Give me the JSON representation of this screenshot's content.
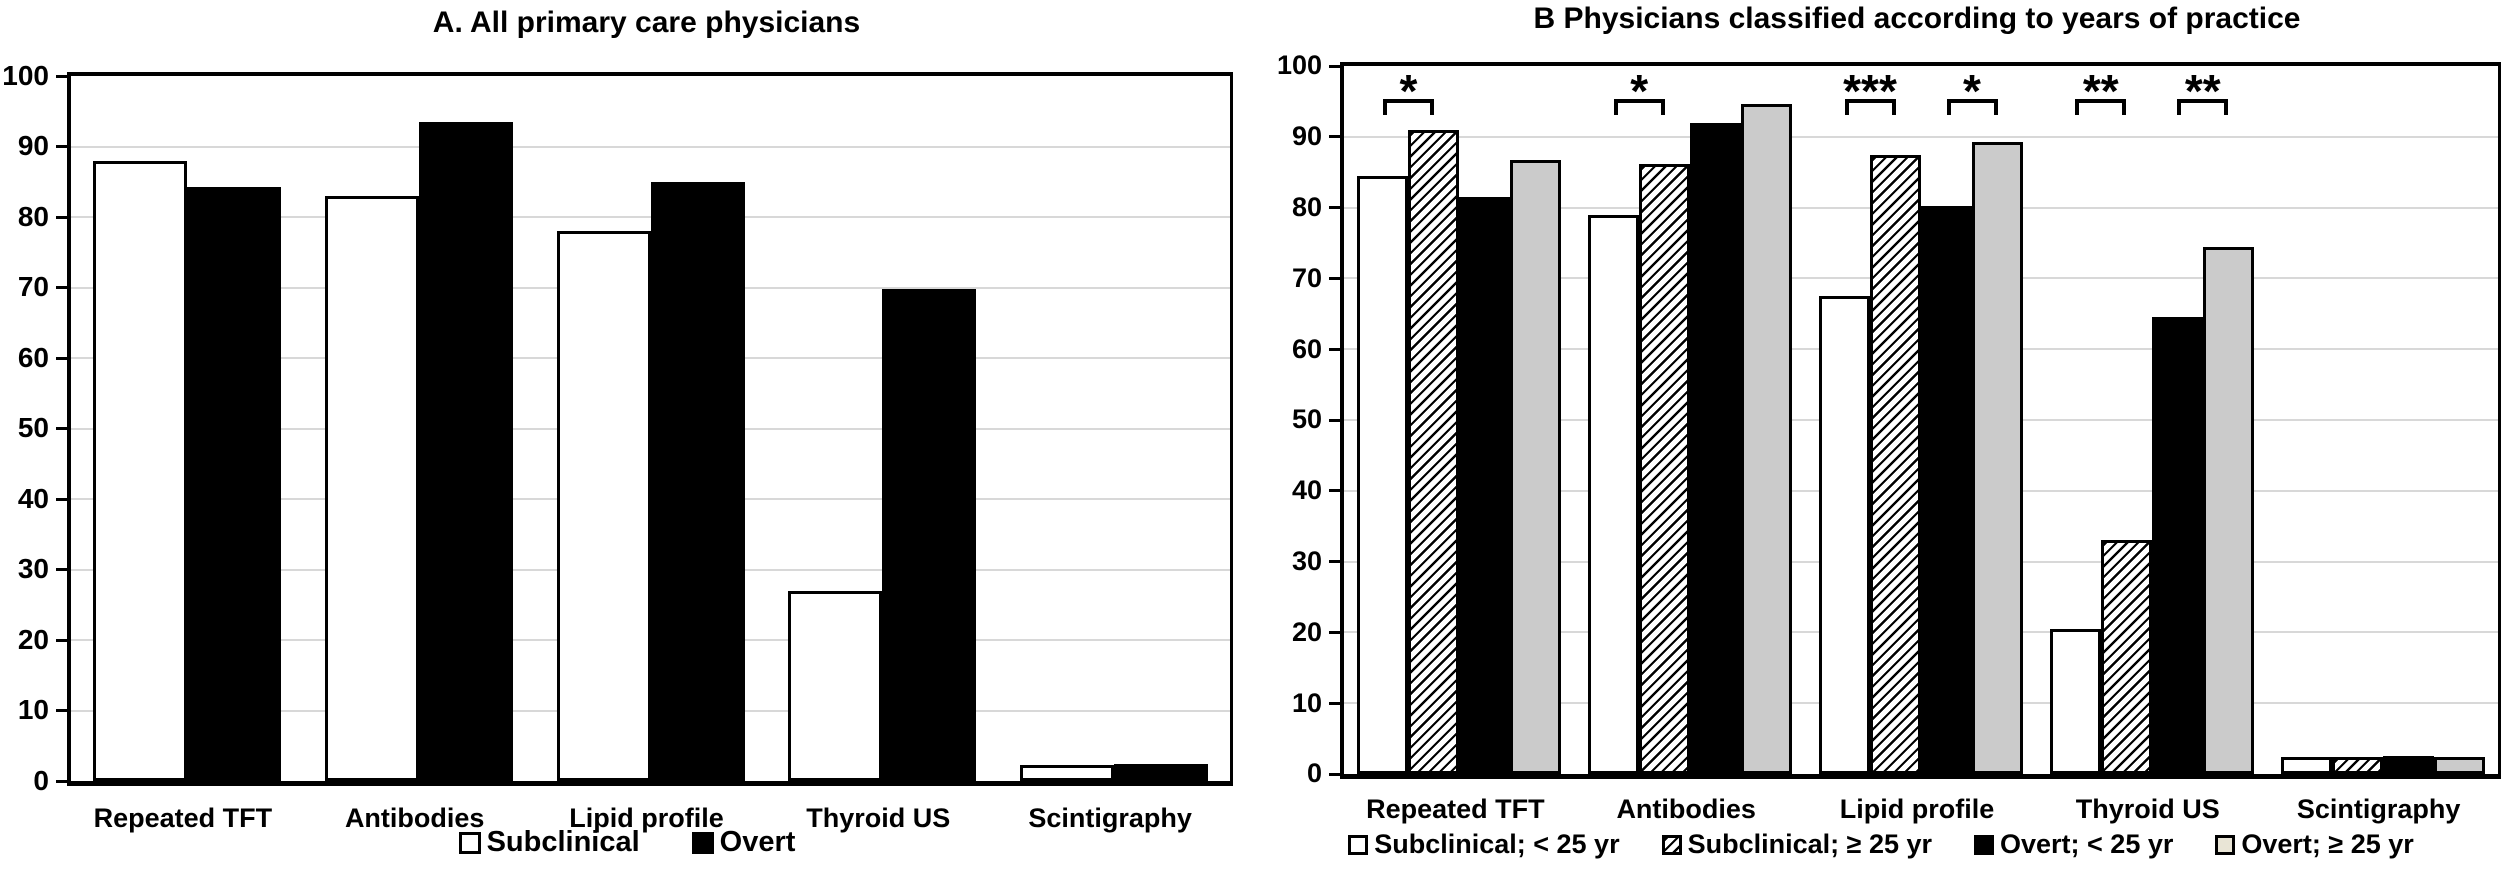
{
  "colors": {
    "black": "#000000",
    "white": "#ffffff",
    "gray_bar": "#cbcbcb",
    "legend_gray_swatch": "#e9e5d6",
    "gridline": "#d8d8d8"
  },
  "chart_data": [
    {
      "type": "bar",
      "panel": "A",
      "title": "A. All primary care physicians",
      "categories": [
        "Repeated TFT",
        "Antibodies",
        "Lipid profile",
        "Thyroid US",
        "Scintigraphy"
      ],
      "series": [
        {
          "name": "Subclinical",
          "style": "white",
          "values": [
            88,
            83,
            78,
            27,
            2.3
          ]
        },
        {
          "name": "Overt",
          "style": "black",
          "values": [
            84.3,
            93.5,
            85,
            69.8,
            2.4
          ]
        }
      ],
      "xlabel": "",
      "ylabel": "",
      "ylim": [
        0,
        100
      ],
      "ytick_step": 10,
      "ytick_labels": [
        "0",
        "10",
        "20",
        "30",
        "40",
        "50",
        "60",
        "70",
        "80",
        "90",
        "100"
      ],
      "grid": true,
      "legend_position": "bottom"
    },
    {
      "type": "bar",
      "panel": "B",
      "title": "B Physicians classified according to years of practice",
      "categories": [
        "Repeated TFT",
        "Antibodies",
        "Lipid profile",
        "Thyroid US",
        "Scintigraphy"
      ],
      "series": [
        {
          "name": "Subclinical; < 25 yr",
          "style": "white",
          "values": [
            84.5,
            79,
            67.5,
            20.5,
            2.4
          ]
        },
        {
          "name": "Subclinical; ≥ 25 yr",
          "style": "hatch",
          "values": [
            91,
            86.2,
            87.5,
            33,
            2.4
          ]
        },
        {
          "name": "Overt; < 25 yr",
          "style": "black",
          "values": [
            81.5,
            92,
            80.2,
            64.5,
            2.5
          ]
        },
        {
          "name": "Overt; ≥ 25 yr",
          "style": "gray",
          "values": [
            86.7,
            94.6,
            89.2,
            74.5,
            2.4
          ]
        }
      ],
      "significance_brackets": [
        {
          "category": "Repeated TFT",
          "category_index": 0,
          "bars": [
            0,
            1
          ],
          "label": "*"
        },
        {
          "category": "Antibodies",
          "category_index": 1,
          "bars": [
            0,
            1
          ],
          "label": "*"
        },
        {
          "category": "Lipid profile",
          "category_index": 2,
          "bars": [
            0,
            1
          ],
          "label": "***"
        },
        {
          "category": "Lipid profile",
          "category_index": 2,
          "bars": [
            2,
            3
          ],
          "label": "*"
        },
        {
          "category": "Thyroid US",
          "category_index": 3,
          "bars": [
            0,
            1
          ],
          "label": "**"
        },
        {
          "category": "Thyroid US",
          "category_index": 3,
          "bars": [
            2,
            3
          ],
          "label": "**"
        }
      ],
      "xlabel": "",
      "ylabel": "",
      "ylim": [
        0,
        100
      ],
      "ytick_step": 10,
      "ytick_labels": [
        "0",
        "10",
        "20",
        "30",
        "40",
        "50",
        "60",
        "70",
        "80",
        "90",
        "100"
      ],
      "grid": true,
      "legend_position": "bottom"
    }
  ]
}
